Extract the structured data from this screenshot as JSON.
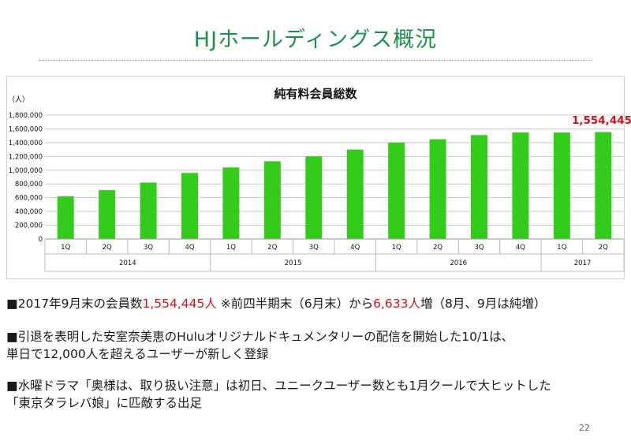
{
  "header": {
    "title": "HJホールディングス概況"
  },
  "chart": {
    "title": "純有料会員総数",
    "unit": "（人）",
    "highlight_label": "1,554,445",
    "colors": {
      "bar": "#33cc1a",
      "highlight": "#d0121b",
      "grid": "#c8c8c8"
    }
  },
  "chart_data": {
    "type": "bar",
    "title": "純有料会員総数",
    "ylabel": "（人）",
    "ylim": [
      0,
      1800000
    ],
    "yticks": [
      "0",
      "200,000",
      "400,000",
      "600,000",
      "800,000",
      "1,000,000",
      "1,200,000",
      "1,400,000",
      "1,600,000",
      "1,800,000"
    ],
    "categories": [
      "1Q",
      "2Q",
      "3Q",
      "4Q",
      "1Q",
      "2Q",
      "3Q",
      "4Q",
      "1Q",
      "2Q",
      "3Q",
      "4Q",
      "1Q",
      "2Q"
    ],
    "years": [
      {
        "label": "2014",
        "count": 4
      },
      {
        "label": "2015",
        "count": 4
      },
      {
        "label": "2016",
        "count": 4
      },
      {
        "label": "2017",
        "count": 2
      }
    ],
    "values": [
      620000,
      710000,
      820000,
      960000,
      1040000,
      1130000,
      1200000,
      1300000,
      1400000,
      1450000,
      1510000,
      1550000,
      1548000,
      1554445
    ],
    "annotations": [
      "1,554,445"
    ],
    "grid": true,
    "legend": "none"
  },
  "body": {
    "p1": {
      "marker": "■",
      "a": "2017年9月末の会員数",
      "b": "1,554,445人",
      "c": "  ※前四半期末（6月末）から",
      "d": "6,633人",
      "e": "増（8月、9月は純増）"
    },
    "p2": {
      "line1": "■引退を表明した安室奈美恵のHuluオリジナルドキュメンタリーの配信を開始した10/1は、",
      "line2": "  単日で12,000人を超えるユーザーが新しく登録"
    },
    "p3": {
      "line1": "■水曜ドラマ「奥様は、取り扱い注意」は初日、ユニークユーザー数とも1月クールで大ヒットした",
      "line2": "「東京タラレバ娘」に匹敵する出足"
    }
  },
  "footer": {
    "page_number": "22"
  }
}
